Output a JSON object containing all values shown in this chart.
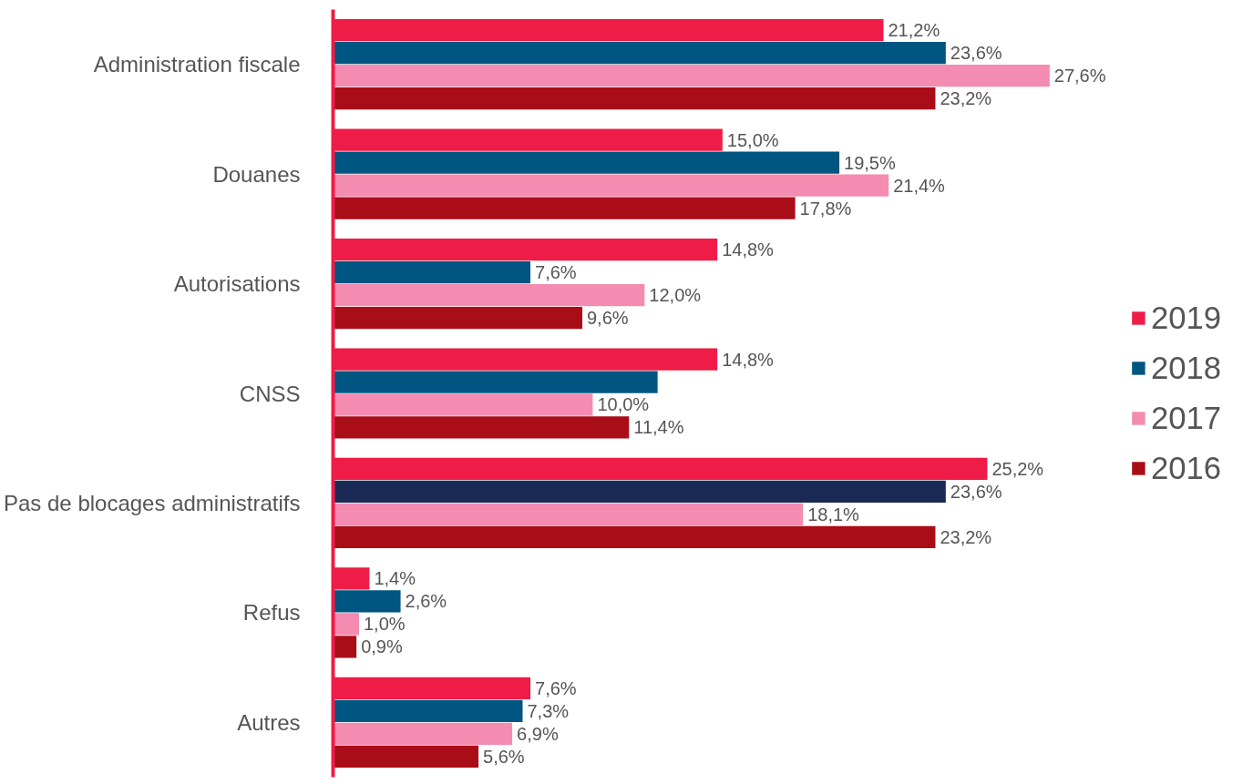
{
  "chart_data": {
    "type": "bar",
    "orientation": "horizontal",
    "categories": [
      "Administration fiscale",
      "Douanes",
      "Autorisations",
      "CNSS",
      "Pas de blocages administratifs",
      "Refus",
      "Autres"
    ],
    "grid": false,
    "legend": "right",
    "tick_labels": "y",
    "series": [
      {
        "name": "2019",
        "color": "#ee1c47",
        "values": [
          21.2,
          15.0,
          14.8,
          14.8,
          25.2,
          1.4,
          7.6
        ],
        "value_labels": [
          "21,2%",
          "15,0%",
          "14,8%",
          "14,8%",
          "25,2%",
          "1,4%",
          "7,6%"
        ]
      },
      {
        "name": "2018",
        "color": "#005581",
        "colors": [
          null,
          null,
          null,
          null,
          "#1b2a55",
          null,
          null
        ],
        "values": [
          23.6,
          19.5,
          7.6,
          12.5,
          23.6,
          2.6,
          7.3
        ],
        "value_labels": [
          "23,6%",
          "19,5%",
          "7,6%",
          null,
          "23,6%",
          "2,6%",
          "7,3%"
        ]
      },
      {
        "name": "2017",
        "color": "#f48bb0",
        "values": [
          27.6,
          21.4,
          12.0,
          10.0,
          18.1,
          1.0,
          6.9
        ],
        "value_labels": [
          "27,6%",
          "21,4%",
          "12,0%",
          "10,0%",
          "18,1%",
          "1,0%",
          "6,9%"
        ]
      },
      {
        "name": "2016",
        "color": "#a90d18",
        "values": [
          23.2,
          17.8,
          9.6,
          11.4,
          23.2,
          0.9,
          5.6
        ],
        "value_labels": [
          "23,2%",
          "17,8%",
          "9,6%",
          "11,4%",
          "23,2%",
          "0,9%",
          "5,6%"
        ]
      }
    ]
  }
}
